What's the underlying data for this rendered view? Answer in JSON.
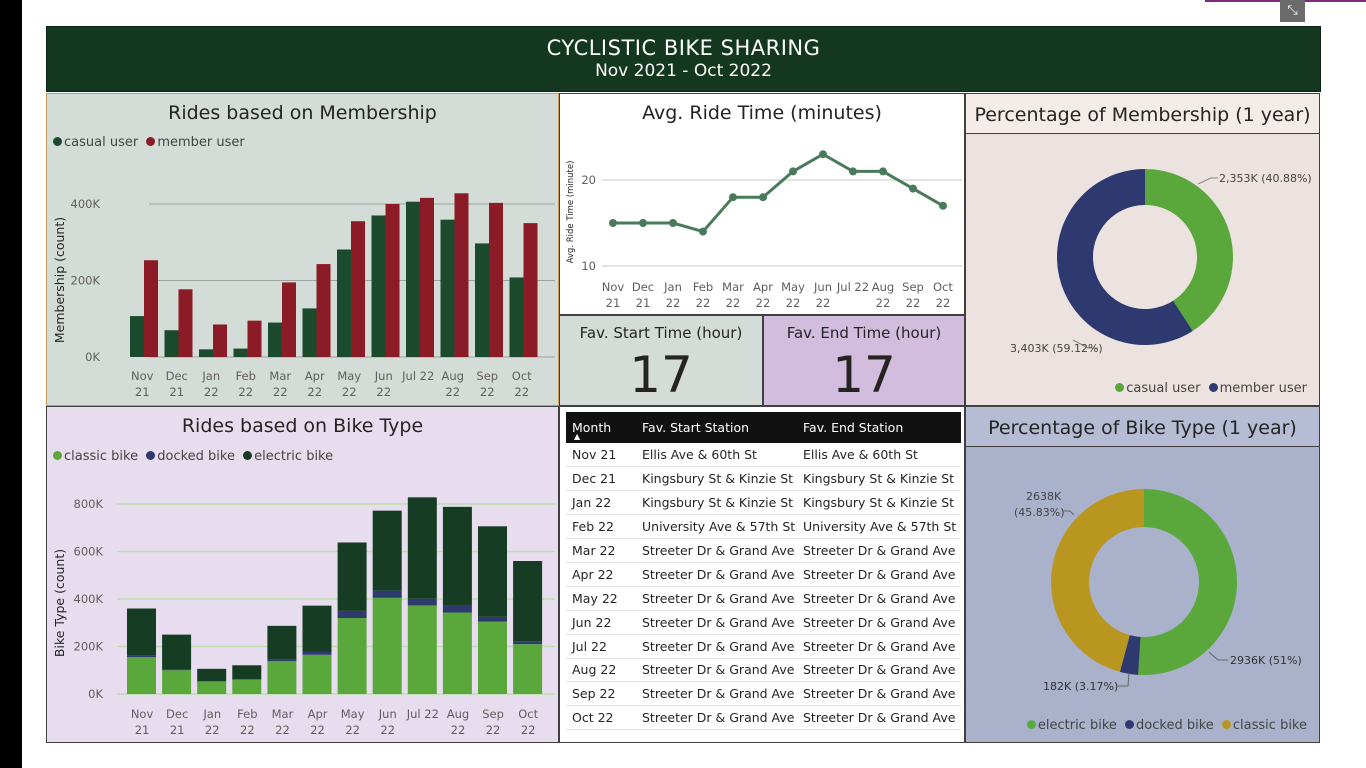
{
  "header": {
    "title": "CYCLISTIC BIKE SHARING",
    "subtitle": "Nov 2021 - Oct 2022"
  },
  "focus_mode_icon": "focus-mode-icon",
  "colors": {
    "header_bg": "#14371f",
    "casual": "#1b4a2c",
    "member": "#8b1c27",
    "classic": "#5aa83c",
    "docked": "#2e3a6f",
    "electric": "#163d23",
    "line": "#4a7a5c",
    "donut_green": "#5aa83c",
    "donut_blue": "#2e3a6f",
    "donut_gold": "#b8961f"
  },
  "months": [
    "Nov 21",
    "Dec 21",
    "Jan 22",
    "Feb 22",
    "Mar 22",
    "Apr 22",
    "May 22",
    "Jun 22",
    "Jul 22",
    "Aug 22",
    "Sep 22",
    "Oct 22"
  ],
  "membership_chart": {
    "title": "Rides based on Membership",
    "ylabel": "Membership (count)",
    "legend": [
      "casual user",
      "member user"
    ]
  },
  "avg_ride_chart": {
    "title": "Avg. Ride Time (minutes)",
    "ylabel": "Avg. Ride Time (minute)"
  },
  "bike_type_chart": {
    "title": "Rides based on Bike Type",
    "ylabel": "Bike Type (count)",
    "legend": [
      "classic bike",
      "docked bike",
      "electric bike"
    ]
  },
  "membership_pct": {
    "title": "Percentage of Membership (1 year)",
    "legend": [
      "casual user",
      "member user"
    ],
    "labels": [
      "2,353K (40.88%)",
      "3,403K (59.12%)"
    ]
  },
  "bike_pct": {
    "title": "Percentage of Bike Type (1 year)",
    "legend": [
      "electric bike",
      "docked bike",
      "classic bike"
    ],
    "labels": [
      "2638K",
      "(45.83%)",
      "2936K (51%)",
      "182K (3.17%)"
    ]
  },
  "cards": {
    "start_title": "Fav. Start Time (hour)",
    "start_value": "17",
    "end_title": "Fav. End Time (hour)",
    "end_value": "17"
  },
  "stations_table": {
    "columns": [
      "Month",
      "Fav. Start Station",
      "Fav. End Station"
    ],
    "rows": [
      [
        "Nov 21",
        "Ellis Ave & 60th St",
        "Ellis Ave & 60th St"
      ],
      [
        "Dec 21",
        "Kingsbury St & Kinzie St",
        "Kingsbury St & Kinzie St"
      ],
      [
        "Jan 22",
        "Kingsbury St & Kinzie St",
        "Kingsbury St & Kinzie St"
      ],
      [
        "Feb 22",
        "University Ave & 57th St",
        "University Ave & 57th St"
      ],
      [
        "Mar 22",
        "Streeter Dr & Grand Ave",
        "Streeter Dr & Grand Ave"
      ],
      [
        "Apr 22",
        "Streeter Dr & Grand Ave",
        "Streeter Dr & Grand Ave"
      ],
      [
        "May 22",
        "Streeter Dr & Grand Ave",
        "Streeter Dr & Grand Ave"
      ],
      [
        "Jun 22",
        "Streeter Dr & Grand Ave",
        "Streeter Dr & Grand Ave"
      ],
      [
        "Jul 22",
        "Streeter Dr & Grand Ave",
        "Streeter Dr & Grand Ave"
      ],
      [
        "Aug 22",
        "Streeter Dr & Grand Ave",
        "Streeter Dr & Grand Ave"
      ],
      [
        "Sep 22",
        "Streeter Dr & Grand Ave",
        "Streeter Dr & Grand Ave"
      ],
      [
        "Oct 22",
        "Streeter Dr & Grand Ave",
        "Streeter Dr & Grand Ave"
      ]
    ]
  },
  "chart_data": [
    {
      "type": "bar",
      "title": "Rides based on Membership",
      "ylabel": "Membership (count)",
      "categories": [
        "Nov 21",
        "Dec 21",
        "Jan 22",
        "Feb 22",
        "Mar 22",
        "Apr 22",
        "May 22",
        "Jun 22",
        "Jul 22",
        "Aug 22",
        "Sep 22",
        "Oct 22"
      ],
      "yticks": [
        "0K",
        "200K",
        "400K"
      ],
      "ylim": [
        0,
        450000
      ],
      "series": [
        {
          "name": "casual user",
          "values": [
            107000,
            70000,
            20000,
            22000,
            90000,
            127000,
            281000,
            370000,
            406000,
            359000,
            297000,
            208000
          ]
        },
        {
          "name": "member user",
          "values": [
            253000,
            177000,
            85000,
            95000,
            195000,
            243000,
            355000,
            400000,
            416000,
            428000,
            403000,
            350000
          ]
        }
      ]
    },
    {
      "type": "line",
      "title": "Avg. Ride Time (minutes)",
      "ylabel": "Avg. Ride Time (minute)",
      "categories": [
        "Nov 21",
        "Dec 21",
        "Jan 22",
        "Feb 22",
        "Mar 22",
        "Apr 22",
        "May 22",
        "Jun 22",
        "Jul 22",
        "Aug 22",
        "Sep 22",
        "Oct 22"
      ],
      "yticks": [
        "10",
        "20"
      ],
      "ylim": [
        10,
        24
      ],
      "values": [
        15,
        15,
        15,
        14,
        18,
        18,
        21,
        23,
        21,
        21,
        19,
        17
      ]
    },
    {
      "type": "bar",
      "stacked": true,
      "title": "Rides based on Bike Type",
      "ylabel": "Bike Type (count)",
      "categories": [
        "Nov 21",
        "Dec 21",
        "Jan 22",
        "Feb 22",
        "Mar 22",
        "Apr 22",
        "May 22",
        "Jun 22",
        "Jul 22",
        "Aug 22",
        "Sep 22",
        "Oct 22"
      ],
      "yticks": [
        "0K",
        "200K",
        "400K",
        "600K",
        "800K"
      ],
      "ylim": [
        0,
        850000
      ],
      "series": [
        {
          "name": "classic bike",
          "values": [
            155000,
            100000,
            52000,
            60000,
            138000,
            165000,
            320000,
            405000,
            373000,
            343000,
            305000,
            210000
          ]
        },
        {
          "name": "docked bike",
          "values": [
            6000,
            5000,
            2000,
            2000,
            9000,
            12000,
            30000,
            30000,
            28000,
            28000,
            20000,
            12000
          ]
        },
        {
          "name": "electric bike",
          "values": [
            199000,
            145000,
            52000,
            59000,
            140000,
            195000,
            288000,
            337000,
            427000,
            417000,
            381000,
            338000
          ]
        }
      ]
    },
    {
      "type": "pie",
      "title": "Percentage of Membership (1 year)",
      "categories": [
        "casual user",
        "member user"
      ],
      "values": [
        2353,
        3403
      ],
      "percent": [
        40.88,
        59.12
      ]
    },
    {
      "type": "pie",
      "title": "Percentage of Bike Type (1 year)",
      "categories": [
        "electric bike",
        "docked bike",
        "classic bike"
      ],
      "values": [
        2936,
        182,
        2638
      ],
      "percent": [
        51,
        3.17,
        45.83
      ]
    }
  ]
}
